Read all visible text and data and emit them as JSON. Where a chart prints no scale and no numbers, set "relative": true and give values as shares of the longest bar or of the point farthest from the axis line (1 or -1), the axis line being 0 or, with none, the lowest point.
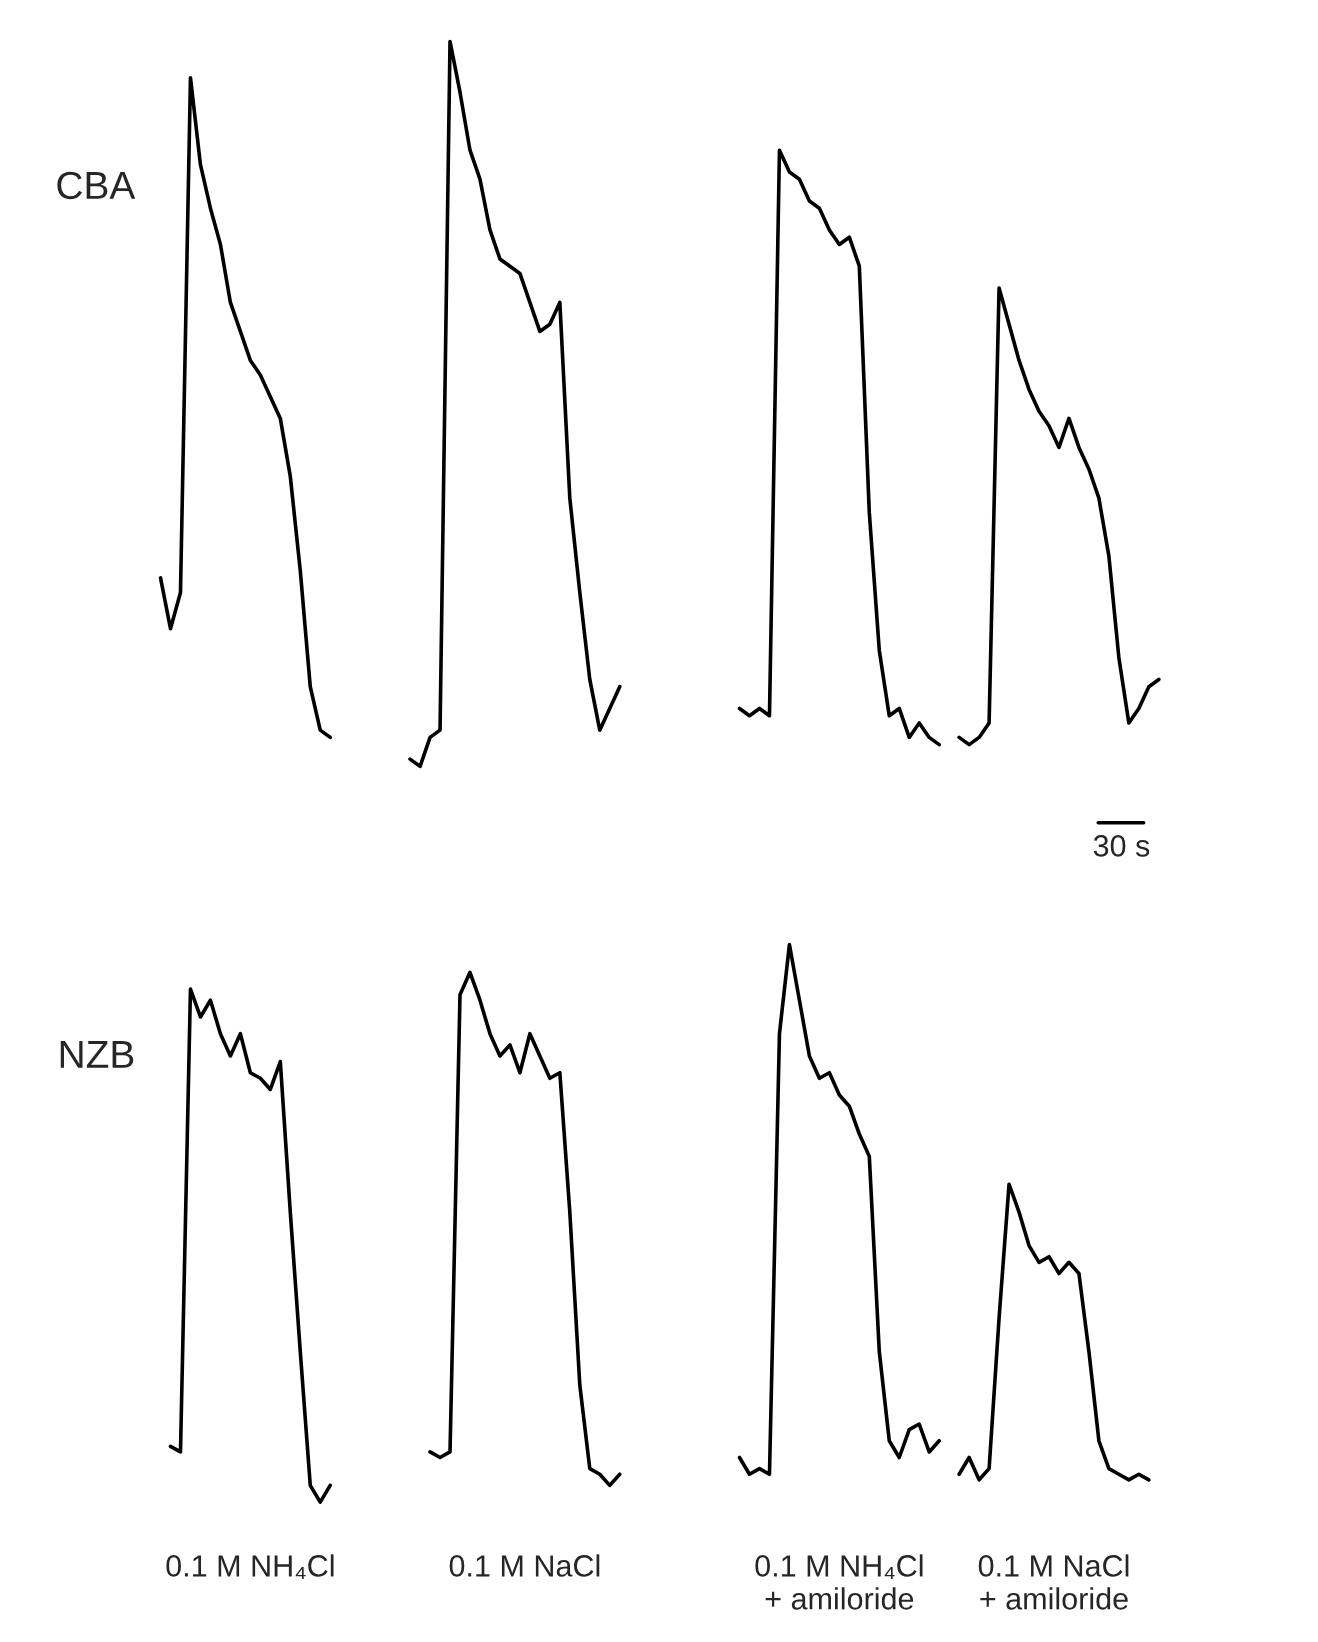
{
  "chart_data": [
    {
      "type": "line",
      "relative": true,
      "ylabel": "CBA",
      "annotations": [
        "30 s"
      ],
      "categories": [
        null,
        null,
        null,
        null,
        null,
        null,
        null,
        null,
        null,
        null,
        null,
        null,
        null,
        null,
        null,
        null,
        null,
        null,
        null,
        null,
        null,
        null,
        null,
        null,
        null,
        null,
        null,
        null,
        null,
        null,
        null,
        null,
        null,
        null,
        null,
        null,
        null,
        null,
        null,
        null,
        null,
        null,
        null,
        null,
        null,
        null,
        null,
        null,
        null,
        null,
        null,
        null,
        null,
        null,
        null,
        null,
        null,
        null,
        null,
        null,
        null,
        null,
        null,
        null,
        null,
        null,
        null,
        null,
        null,
        null,
        null,
        null,
        null,
        null,
        null,
        null,
        null,
        null,
        null,
        null,
        null,
        null,
        null,
        null,
        null,
        null,
        null,
        null,
        null,
        null,
        null,
        null,
        null,
        null,
        null,
        null,
        null,
        null,
        null,
        null,
        null
      ],
      "series": [
        {
          "color": "#000000",
          "values": [
            0.26,
            0.19,
            0.24,
            0.95,
            0.83,
            0.77,
            0.72,
            0.64,
            0.6,
            0.56,
            0.54,
            0.51,
            0.48,
            0.4,
            0.27,
            0.11,
            0.05,
            0.04,
            null,
            null,
            null,
            null,
            null,
            null,
            null,
            null,
            null,
            null,
            null,
            null,
            null,
            null,
            null,
            null,
            null,
            null,
            null,
            null,
            null,
            null,
            null,
            null,
            null,
            null,
            null,
            null,
            null,
            null,
            null,
            null,
            null,
            null,
            null,
            null,
            null,
            null,
            null,
            null,
            null,
            null,
            null,
            null,
            null,
            null,
            null,
            null,
            null,
            null,
            null,
            null,
            null,
            null,
            null,
            null,
            null,
            null,
            null,
            null,
            null,
            null,
            null,
            null,
            null,
            null,
            null,
            null,
            null,
            null,
            null,
            null,
            null,
            null,
            null,
            null,
            null,
            null,
            null,
            null,
            null,
            null,
            null
          ]
        },
        {
          "color": "#000000",
          "values": [
            null,
            null,
            null,
            null,
            null,
            null,
            null,
            null,
            null,
            null,
            null,
            null,
            null,
            null,
            null,
            null,
            null,
            null,
            null,
            null,
            null,
            null,
            null,
            null,
            null,
            0.01,
            0,
            0.04,
            0.05,
            1.0,
            0.93,
            0.85,
            0.81,
            0.74,
            0.7,
            0.69,
            0.68,
            0.64,
            0.6,
            0.61,
            0.64,
            0.37,
            0.24,
            0.12,
            0.05,
            0.08,
            0.11,
            null,
            null,
            null,
            null,
            null,
            null,
            null,
            null,
            null,
            null,
            null,
            null,
            null,
            null,
            null,
            null,
            null,
            null,
            null,
            null,
            null,
            null,
            null,
            null,
            null,
            null,
            null,
            null,
            null,
            null,
            null,
            null,
            null,
            null,
            null,
            null,
            null,
            null,
            null,
            null,
            null,
            null,
            null,
            null,
            null,
            null,
            null,
            null,
            null,
            null,
            null,
            null,
            null,
            null
          ]
        },
        {
          "color": "#000000",
          "values": [
            null,
            null,
            null,
            null,
            null,
            null,
            null,
            null,
            null,
            null,
            null,
            null,
            null,
            null,
            null,
            null,
            null,
            null,
            null,
            null,
            null,
            null,
            null,
            null,
            null,
            null,
            null,
            null,
            null,
            null,
            null,
            null,
            null,
            null,
            null,
            null,
            null,
            null,
            null,
            null,
            null,
            null,
            null,
            null,
            null,
            null,
            null,
            null,
            null,
            null,
            null,
            null,
            null,
            null,
            null,
            null,
            null,
            null,
            0.08,
            0.07,
            0.08,
            0.07,
            0.85,
            0.82,
            0.81,
            0.78,
            0.77,
            0.74,
            0.72,
            0.73,
            0.69,
            0.35,
            0.16,
            0.07,
            0.08,
            0.04,
            0.06,
            0.04,
            0.03,
            null,
            null,
            null,
            null,
            null,
            null,
            null,
            null,
            null,
            null,
            null,
            null,
            null,
            null,
            null,
            null,
            null,
            null,
            null,
            null,
            null,
            null
          ]
        },
        {
          "color": "#000000",
          "values": [
            null,
            null,
            null,
            null,
            null,
            null,
            null,
            null,
            null,
            null,
            null,
            null,
            null,
            null,
            null,
            null,
            null,
            null,
            null,
            null,
            null,
            null,
            null,
            null,
            null,
            null,
            null,
            null,
            null,
            null,
            null,
            null,
            null,
            null,
            null,
            null,
            null,
            null,
            null,
            null,
            null,
            null,
            null,
            null,
            null,
            null,
            null,
            null,
            null,
            null,
            null,
            null,
            null,
            null,
            null,
            null,
            null,
            null,
            null,
            null,
            null,
            null,
            null,
            null,
            null,
            null,
            null,
            null,
            null,
            null,
            null,
            null,
            null,
            null,
            null,
            null,
            null,
            null,
            null,
            null,
            0.04,
            0.03,
            0.04,
            0.06,
            0.66,
            0.61,
            0.56,
            0.52,
            0.49,
            0.47,
            0.44,
            0.48,
            0.44,
            0.41,
            0.37,
            0.29,
            0.15,
            0.06,
            0.08,
            0.11,
            0.12
          ]
        }
      ]
    },
    {
      "type": "line",
      "relative": true,
      "ylabel": "NZB",
      "categories": [
        null,
        null,
        null,
        null,
        null,
        null,
        null,
        null,
        null,
        null,
        null,
        null,
        null,
        null,
        null,
        null,
        null,
        null,
        null,
        null,
        null,
        null,
        null,
        null,
        null,
        null,
        null,
        null,
        null,
        null,
        null,
        null,
        null,
        null,
        null,
        null,
        null,
        null,
        null,
        null,
        null,
        null,
        null,
        null,
        null,
        null,
        null,
        null,
        null,
        null,
        null,
        null,
        null,
        null,
        null,
        null,
        null,
        null,
        null,
        null,
        null,
        null,
        null,
        null,
        null,
        null,
        null,
        null,
        null,
        null,
        null,
        null,
        null,
        null,
        null,
        null,
        null,
        null,
        null,
        null,
        null,
        null,
        null,
        null,
        null,
        null,
        null,
        null,
        null,
        null,
        null,
        null,
        null,
        null,
        null,
        null,
        null,
        null,
        null,
        null,
        null
      ],
      "series": [
        {
          "name": "0.1 M NH₄Cl",
          "color": "#000000",
          "values": [
            null,
            0.1,
            0.09,
            0.92,
            0.87,
            0.9,
            0.84,
            0.8,
            0.84,
            0.77,
            0.76,
            0.74,
            0.79,
            0.52,
            0.27,
            0.03,
            0,
            0.03,
            null,
            null,
            null,
            null,
            null,
            null,
            null,
            null,
            null,
            null,
            null,
            null,
            null,
            null,
            null,
            null,
            null,
            null,
            null,
            null,
            null,
            null,
            null,
            null,
            null,
            null,
            null,
            null,
            null,
            null,
            null,
            null,
            null,
            null,
            null,
            null,
            null,
            null,
            null,
            null,
            null,
            null,
            null,
            null,
            null,
            null,
            null,
            null,
            null,
            null,
            null,
            null,
            null,
            null,
            null,
            null,
            null,
            null,
            null,
            null,
            null,
            null,
            null,
            null,
            null,
            null,
            null,
            null,
            null,
            null,
            null,
            null,
            null,
            null,
            null,
            null,
            null,
            null,
            null,
            null,
            null,
            null,
            null
          ]
        },
        {
          "name": "0.1 M NaCl",
          "color": "#000000",
          "values": [
            null,
            null,
            null,
            null,
            null,
            null,
            null,
            null,
            null,
            null,
            null,
            null,
            null,
            null,
            null,
            null,
            null,
            null,
            null,
            null,
            null,
            null,
            null,
            null,
            null,
            null,
            null,
            0.09,
            0.08,
            0.09,
            0.91,
            0.95,
            0.9,
            0.84,
            0.8,
            0.82,
            0.77,
            0.84,
            0.8,
            0.76,
            0.77,
            0.52,
            0.21,
            0.06,
            0.05,
            0.03,
            0.05,
            null,
            null,
            null,
            null,
            null,
            null,
            null,
            null,
            null,
            null,
            null,
            null,
            null,
            null,
            null,
            null,
            null,
            null,
            null,
            null,
            null,
            null,
            null,
            null,
            null,
            null,
            null,
            null,
            null,
            null,
            null,
            null,
            null,
            null,
            null,
            null,
            null,
            null,
            null,
            null,
            null,
            null,
            null,
            null,
            null,
            null,
            null,
            null,
            null,
            null,
            null,
            null,
            null,
            null
          ]
        },
        {
          "name": "0.1 M NH₄Cl\n+ amiloride",
          "color": "#000000",
          "values": [
            null,
            null,
            null,
            null,
            null,
            null,
            null,
            null,
            null,
            null,
            null,
            null,
            null,
            null,
            null,
            null,
            null,
            null,
            null,
            null,
            null,
            null,
            null,
            null,
            null,
            null,
            null,
            null,
            null,
            null,
            null,
            null,
            null,
            null,
            null,
            null,
            null,
            null,
            null,
            null,
            null,
            null,
            null,
            null,
            null,
            null,
            null,
            null,
            null,
            null,
            null,
            null,
            null,
            null,
            null,
            null,
            null,
            null,
            0.08,
            0.05,
            0.06,
            0.05,
            0.84,
            1.0,
            0.9,
            0.8,
            0.76,
            0.77,
            0.73,
            0.71,
            0.66,
            0.62,
            0.27,
            0.11,
            0.08,
            0.13,
            0.14,
            0.09,
            0.11,
            null,
            null,
            null,
            null,
            null,
            null,
            null,
            null,
            null,
            null,
            null,
            null,
            null,
            null,
            null,
            null,
            null,
            null,
            null,
            null,
            null,
            null
          ]
        },
        {
          "name": "0.1 M NaCl\n+ amiloride",
          "color": "#000000",
          "values": [
            null,
            null,
            null,
            null,
            null,
            null,
            null,
            null,
            null,
            null,
            null,
            null,
            null,
            null,
            null,
            null,
            null,
            null,
            null,
            null,
            null,
            null,
            null,
            null,
            null,
            null,
            null,
            null,
            null,
            null,
            null,
            null,
            null,
            null,
            null,
            null,
            null,
            null,
            null,
            null,
            null,
            null,
            null,
            null,
            null,
            null,
            null,
            null,
            null,
            null,
            null,
            null,
            null,
            null,
            null,
            null,
            null,
            null,
            null,
            null,
            null,
            null,
            null,
            null,
            null,
            null,
            null,
            null,
            null,
            null,
            null,
            null,
            null,
            null,
            null,
            null,
            null,
            null,
            null,
            null,
            0.05,
            0.08,
            0.04,
            0.06,
            0.33,
            0.57,
            0.52,
            0.46,
            0.43,
            0.44,
            0.41,
            0.43,
            0.41,
            0.27,
            0.11,
            0.06,
            0.05,
            0.04,
            0.05,
            0.04,
            null
          ]
        }
      ]
    }
  ]
}
